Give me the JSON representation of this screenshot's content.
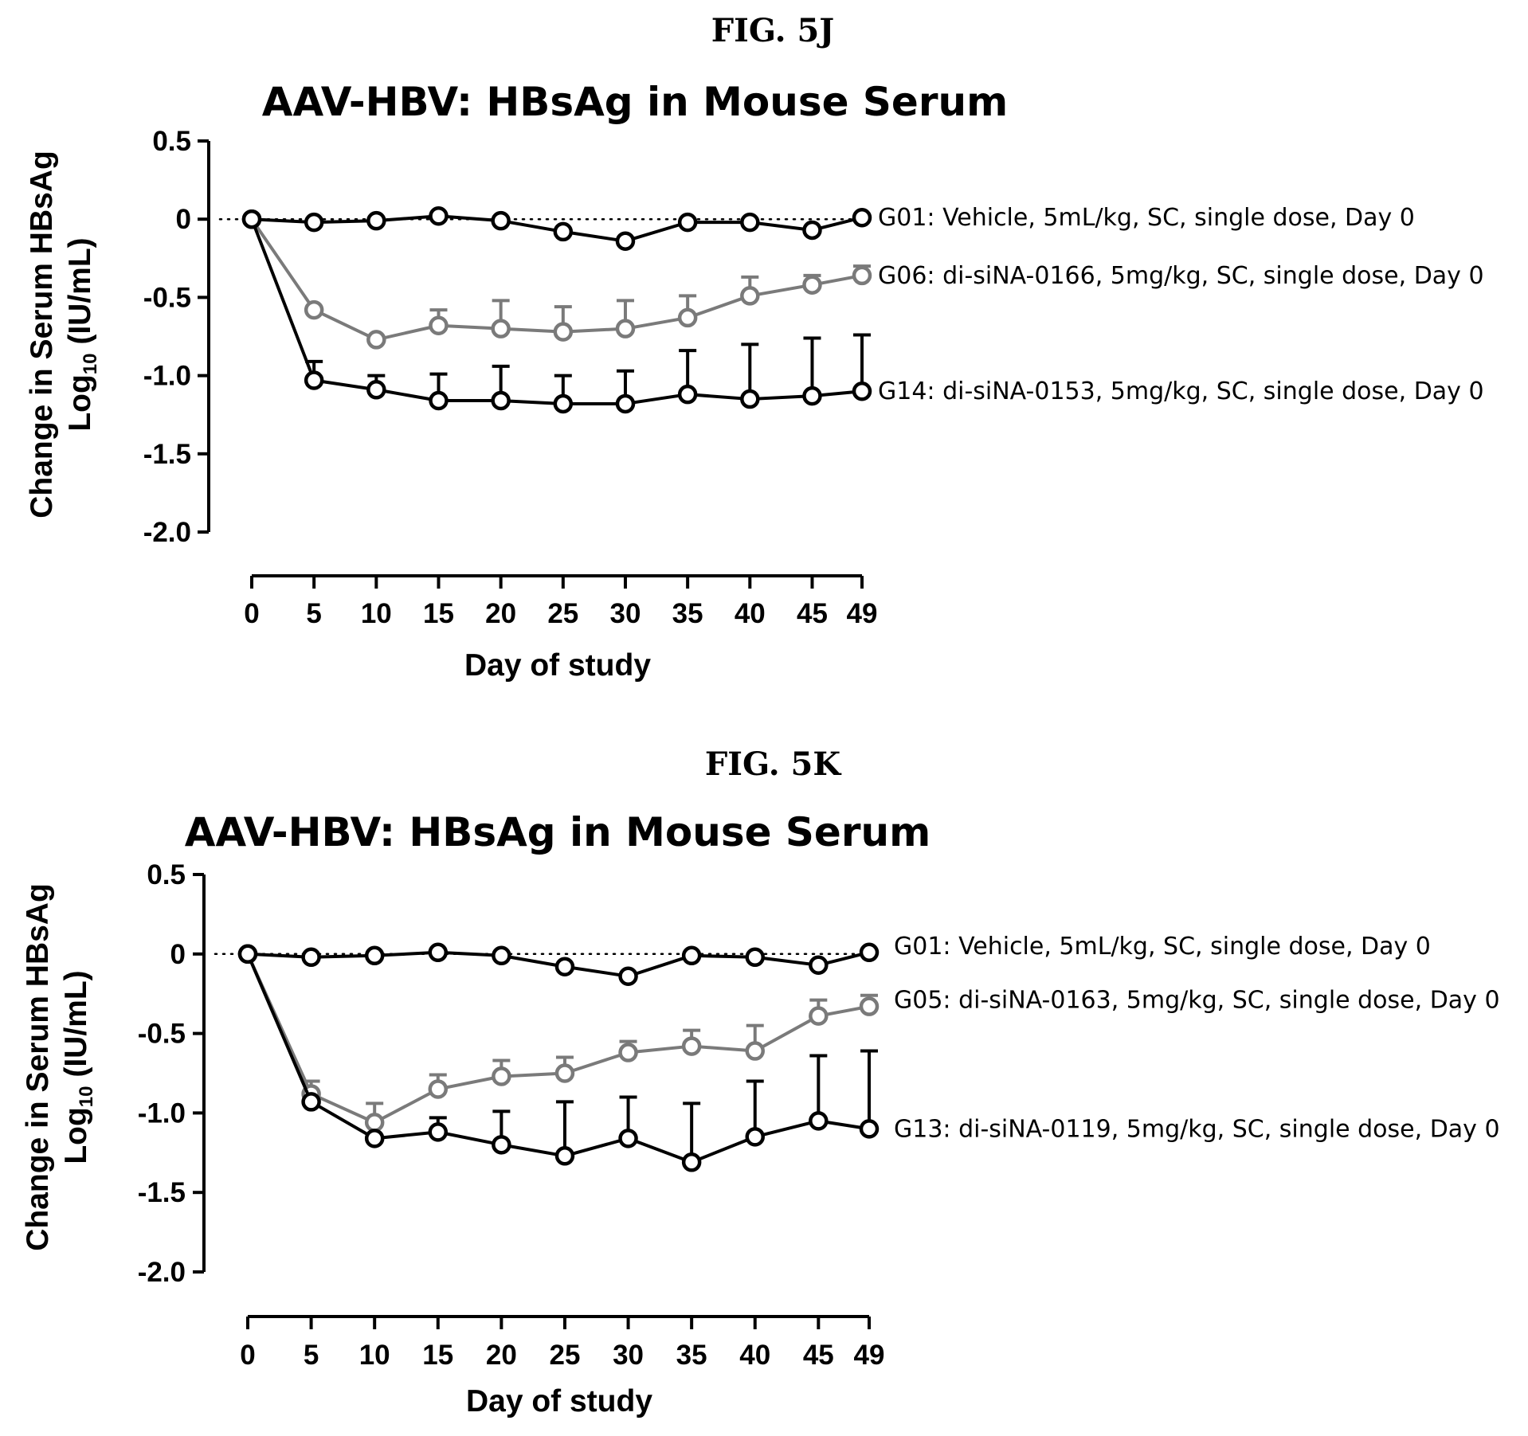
{
  "chart_data": [
    {
      "figure_label": "FIG. 5J",
      "type": "line",
      "title": "AAV-HBV: HBsAg in Mouse Serum",
      "xlabel": "Day of study",
      "ylabel_line1": "Change in Serum HBsAg",
      "ylabel_line2_prefix": "Log",
      "ylabel_line2_sub": "10",
      "ylabel_line2_suffix": " (IU/mL)",
      "xlim": [
        0,
        49
      ],
      "ylim": [
        -2.0,
        0.5
      ],
      "x_ticks": [
        0,
        5,
        10,
        15,
        20,
        25,
        30,
        35,
        40,
        45,
        49
      ],
      "x_tick_labels": [
        "0",
        "5",
        "10",
        "15",
        "20",
        "25",
        "30",
        "35",
        "40",
        "45",
        "49"
      ],
      "y_ticks": [
        0.5,
        0,
        -0.5,
        -1.0,
        -1.5,
        -2.0
      ],
      "y_tick_labels": [
        "0.5",
        "0",
        "-0.5",
        "-1.0",
        "-1.5",
        "-2.0"
      ],
      "reference_line": 0,
      "x": [
        0,
        5,
        10,
        15,
        20,
        25,
        30,
        35,
        40,
        45,
        49
      ],
      "series": [
        {
          "name": "G01: Vehicle, 5mL/kg, SC, single dose, Day 0",
          "color": "#000000",
          "values": [
            0,
            -0.02,
            -0.01,
            0.02,
            -0.01,
            -0.08,
            -0.14,
            -0.02,
            -0.02,
            -0.07,
            0.01
          ],
          "errors": [
            0,
            0,
            0,
            0,
            0,
            0,
            0,
            0,
            0,
            0,
            0
          ]
        },
        {
          "name": "G06: di-siNA-0166, 5mg/kg, SC, single dose, Day 0",
          "color": "#7a7a7a",
          "values": [
            0,
            -0.58,
            -0.77,
            -0.68,
            -0.7,
            -0.72,
            -0.7,
            -0.63,
            -0.49,
            -0.42,
            -0.36
          ],
          "errors": [
            0,
            0,
            0,
            0.1,
            0.18,
            0.16,
            0.18,
            0.14,
            0.12,
            0.06,
            0.06
          ]
        },
        {
          "name": "G14: di-siNA-0153, 5mg/kg, SC, single dose, Day 0",
          "color": "#000000",
          "values": [
            0,
            -1.03,
            -1.09,
            -1.16,
            -1.16,
            -1.18,
            -1.18,
            -1.12,
            -1.15,
            -1.13,
            -1.1
          ],
          "errors": [
            0,
            0.12,
            0.09,
            0.17,
            0.22,
            0.18,
            0.21,
            0.28,
            0.35,
            0.37,
            0.36
          ]
        }
      ]
    },
    {
      "figure_label": "FIG. 5K",
      "type": "line",
      "title": "AAV-HBV: HBsAg in Mouse Serum",
      "xlabel": "Day of study",
      "ylabel_line1": "Change in Serum HBsAg",
      "ylabel_line2_prefix": "Log",
      "ylabel_line2_sub": "10",
      "ylabel_line2_suffix": " (IU/mL)",
      "xlim": [
        0,
        49
      ],
      "ylim": [
        -2.0,
        0.5
      ],
      "x_ticks": [
        0,
        5,
        10,
        15,
        20,
        25,
        30,
        35,
        40,
        45,
        49
      ],
      "x_tick_labels": [
        "0",
        "5",
        "10",
        "15",
        "20",
        "25",
        "30",
        "35",
        "40",
        "45",
        "49"
      ],
      "y_ticks": [
        0.5,
        0,
        -0.5,
        -1.0,
        -1.5,
        -2.0
      ],
      "y_tick_labels": [
        "0.5",
        "0",
        "-0.5",
        "-1.0",
        "-1.5",
        "-2.0"
      ],
      "reference_line": 0,
      "x": [
        0,
        5,
        10,
        15,
        20,
        25,
        30,
        35,
        40,
        45,
        49
      ],
      "series": [
        {
          "name": "G01: Vehicle, 5mL/kg, SC, single dose, Day 0",
          "color": "#000000",
          "values": [
            0,
            -0.02,
            -0.01,
            0.01,
            -0.01,
            -0.08,
            -0.14,
            -0.01,
            -0.02,
            -0.07,
            0.01
          ],
          "errors": [
            0,
            0,
            0,
            0,
            0,
            0,
            0,
            0,
            0,
            0,
            0
          ]
        },
        {
          "name": "G05: di-siNA-0163, 5mg/kg, SC, single dose, Day 0",
          "color": "#7a7a7a",
          "values": [
            0,
            -0.88,
            -1.06,
            -0.85,
            -0.77,
            -0.75,
            -0.62,
            -0.58,
            -0.61,
            -0.39,
            -0.33
          ],
          "errors": [
            0,
            0.08,
            0.12,
            0.09,
            0.1,
            0.1,
            0.07,
            0.1,
            0.16,
            0.1,
            0.07
          ]
        },
        {
          "name": "G13: di-siNA-0119, 5mg/kg, SC, single dose, Day 0",
          "color": "#000000",
          "values": [
            0,
            -0.93,
            -1.16,
            -1.12,
            -1.2,
            -1.27,
            -1.16,
            -1.31,
            -1.15,
            -1.05,
            -1.1
          ],
          "errors": [
            0,
            0,
            0,
            0.09,
            0.21,
            0.34,
            0.26,
            0.37,
            0.35,
            0.41,
            0.49
          ]
        }
      ]
    }
  ]
}
